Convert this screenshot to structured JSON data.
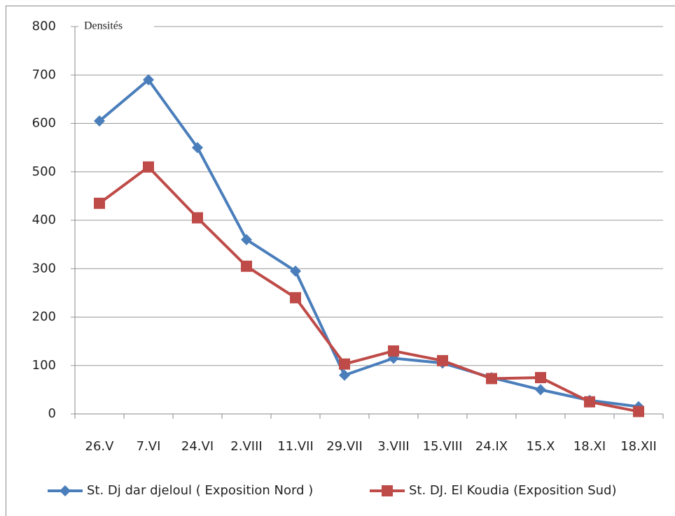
{
  "chart_data": {
    "type": "line",
    "title": "Densités",
    "categories": [
      "26.V",
      "7.VI",
      "24.VI",
      "2.VIII",
      "11.VII",
      "29.VII",
      "3.VIII",
      "15.VIII",
      "24.IX",
      "15.X",
      "18.XI",
      "18.XII"
    ],
    "series": [
      {
        "name": "St. Dj dar djeloul ( Exposition Nord )",
        "color": "#4a7ebb",
        "marker": "diamond",
        "values": [
          605,
          690,
          550,
          360,
          295,
          80,
          115,
          105,
          75,
          50,
          28,
          15
        ]
      },
      {
        "name": "St. DJ. El Koudia (Exposition Sud)",
        "color": "#be4b48",
        "marker": "square",
        "values": [
          435,
          510,
          405,
          305,
          240,
          103,
          130,
          110,
          73,
          75,
          25,
          5
        ]
      }
    ],
    "ylim": [
      0,
      800
    ],
    "yticks": [
      0,
      100,
      200,
      300,
      400,
      500,
      600,
      700,
      800
    ],
    "grid": true
  }
}
